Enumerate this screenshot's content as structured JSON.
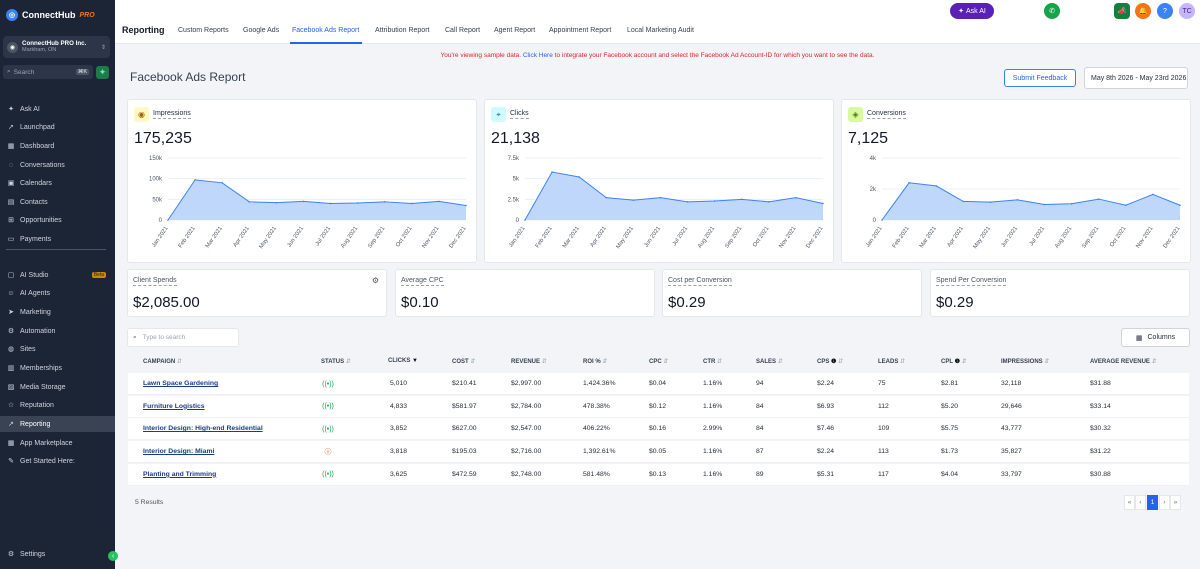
{
  "brand": {
    "name": "ConnectHub",
    "suffix": "PRO"
  },
  "account": {
    "name": "ConnectHub PRO Inc.",
    "location": "Markham, ON"
  },
  "sidebar": {
    "search_placeholder": "Search",
    "search_shortcut": "⌘K",
    "items": [
      {
        "label": "Ask AI",
        "icon": "sparkle-icon"
      },
      {
        "label": "Launchpad",
        "icon": "rocket-icon"
      },
      {
        "label": "Dashboard",
        "icon": "dashboard-icon"
      },
      {
        "label": "Conversations",
        "icon": "chat-icon"
      },
      {
        "label": "Calendars",
        "icon": "calendar-icon"
      },
      {
        "label": "Contacts",
        "icon": "contacts-icon"
      },
      {
        "label": "Opportunities",
        "icon": "funnel-icon"
      },
      {
        "label": "Payments",
        "icon": "payments-icon"
      },
      {
        "label": "AI Studio",
        "icon": "ai-studio-icon",
        "badge": "Beta"
      },
      {
        "label": "AI Agents",
        "icon": "robot-icon"
      },
      {
        "label": "Marketing",
        "icon": "send-icon"
      },
      {
        "label": "Automation",
        "icon": "automation-icon"
      },
      {
        "label": "Sites",
        "icon": "globe-icon"
      },
      {
        "label": "Memberships",
        "icon": "membership-icon"
      },
      {
        "label": "Media Storage",
        "icon": "image-icon"
      },
      {
        "label": "Reputation",
        "icon": "star-icon"
      },
      {
        "label": "Reporting",
        "icon": "trend-icon",
        "active": true
      },
      {
        "label": "App Marketplace",
        "icon": "grid-icon"
      },
      {
        "label": "Get Started Here:",
        "icon": "wrench-icon"
      }
    ],
    "settings_label": "Settings"
  },
  "header": {
    "title": "Reporting",
    "tabs": [
      "Custom Reports",
      "Google Ads",
      "Facebook Ads Report",
      "Attribution Report",
      "Call Report",
      "Agent Report",
      "Appointment Report",
      "Local Marketing Audit"
    ],
    "active_tab": "Facebook Ads Report",
    "ask_ai": "Ask AI",
    "avatar_initials": "TC"
  },
  "notice": {
    "prefix": "You're viewing sample data.",
    "link": "Click Here",
    "suffix": "to integrate your Facebook account and select the Facebook Ad Account-ID for which you want to see the data."
  },
  "page": {
    "title": "Facebook Ads Report",
    "feedback_button": "Submit Feedback",
    "date_range": "May 8th 2026 - May 23rd 2026"
  },
  "kpis": [
    {
      "label": "Impressions",
      "value": "175,235",
      "icon": "eye-icon",
      "color": "#fef9c3",
      "iconColor": "#a16207"
    },
    {
      "label": "Clicks",
      "value": "21,138",
      "icon": "cursor-click-icon",
      "color": "#cffafe",
      "iconColor": "#0e7490"
    },
    {
      "label": "Conversions",
      "value": "7,125",
      "icon": "diamond-icon",
      "color": "#d9f99d",
      "iconColor": "#4d7c0f"
    }
  ],
  "chart_data": [
    {
      "type": "area",
      "title": "Impressions",
      "x": [
        "Jan 2021",
        "Feb 2021",
        "Mar 2021",
        "Apr 2021",
        "May 2021",
        "Jun 2021",
        "Jul 2021",
        "Aug 2021",
        "Sep 2021",
        "Oct 2021",
        "Nov 2021",
        "Dec 2021"
      ],
      "values": [
        0,
        97000,
        90000,
        44000,
        42000,
        45000,
        40000,
        41000,
        44000,
        40000,
        45000,
        35000
      ],
      "ylim": [
        0,
        150000
      ],
      "yticks": [
        "0",
        "50k",
        "100k",
        "150k"
      ],
      "yticks_values": [
        0,
        50000,
        100000,
        150000
      ]
    },
    {
      "type": "area",
      "title": "Clicks",
      "x": [
        "Jan 2021",
        "Feb 2021",
        "Mar 2021",
        "Apr 2021",
        "May 2021",
        "Jun 2021",
        "Jul 2021",
        "Aug 2021",
        "Sep 2021",
        "Oct 2021",
        "Nov 2021",
        "Dec 2021"
      ],
      "values": [
        0,
        5800,
        5200,
        2700,
        2400,
        2700,
        2200,
        2300,
        2500,
        2200,
        2700,
        2000
      ],
      "ylim": [
        0,
        7500
      ],
      "yticks": [
        "0",
        "2.5k",
        "5k",
        "7.5k"
      ],
      "yticks_values": [
        0,
        2500,
        5000,
        7500
      ]
    },
    {
      "type": "area",
      "title": "Conversions",
      "x": [
        "Jan 2021",
        "Feb 2021",
        "Mar 2021",
        "Apr 2021",
        "May 2021",
        "Jun 2021",
        "Jul 2021",
        "Aug 2021",
        "Sep 2021",
        "Oct 2021",
        "Nov 2021",
        "Dec 2021"
      ],
      "values": [
        0,
        2400,
        2200,
        1200,
        1150,
        1300,
        1000,
        1050,
        1350,
        950,
        1650,
        950
      ],
      "ylim": [
        0,
        4000
      ],
      "yticks": [
        "0",
        "2k",
        "4k"
      ],
      "yticks_values": [
        0,
        2000,
        4000
      ]
    }
  ],
  "stats": [
    {
      "label": "Client Spends",
      "value": "$2,085.00",
      "gear": true
    },
    {
      "label": "Average CPC",
      "value": "$0.10"
    },
    {
      "label": "Cost per Conversion",
      "value": "$0.29"
    },
    {
      "label": "Spend Per Conversion",
      "value": "$0.29"
    }
  ],
  "table": {
    "search_placeholder": "Type to search",
    "columns_button": "Columns",
    "headers": [
      "CAMPAIGN",
      "STATUS",
      "CLICKS",
      "COST",
      "REVENUE",
      "ROI %",
      "CPC",
      "CTR",
      "SALES",
      "CPS",
      "LEADS",
      "CPL",
      "IMPRESSIONS",
      "AVERAGE REVENUE"
    ],
    "rows": [
      {
        "campaign": "Lawn Space Gardening",
        "status": "active",
        "clicks": "5,010",
        "cost": "$210.41",
        "revenue": "$2,997.00",
        "roi": "1,424.36%",
        "cpc": "$0.04",
        "ctr": "1.16%",
        "sales": "94",
        "cps": "$2.24",
        "leads": "75",
        "cpl": "$2.81",
        "impressions": "32,118",
        "avg_revenue": "$31.88"
      },
      {
        "campaign": "Furniture Logistics",
        "status": "active",
        "clicks": "4,833",
        "cost": "$581.97",
        "revenue": "$2,784.00",
        "roi": "478.38%",
        "cpc": "$0.12",
        "ctr": "1.16%",
        "sales": "84",
        "cps": "$6.93",
        "leads": "112",
        "cpl": "$5.20",
        "impressions": "29,646",
        "avg_revenue": "$33.14"
      },
      {
        "campaign": "Interior Design: High-end Residential",
        "status": "active",
        "clicks": "3,852",
        "cost": "$627.00",
        "revenue": "$2,547.00",
        "roi": "406.22%",
        "cpc": "$0.16",
        "ctr": "2.99%",
        "sales": "84",
        "cps": "$7.46",
        "leads": "109",
        "cpl": "$5.75",
        "impressions": "43,777",
        "avg_revenue": "$30.32"
      },
      {
        "campaign": "Interior Design: Miami",
        "status": "paused",
        "clicks": "3,818",
        "cost": "$195.03",
        "revenue": "$2,716.00",
        "roi": "1,392.61%",
        "cpc": "$0.05",
        "ctr": "1.16%",
        "sales": "87",
        "cps": "$2.24",
        "leads": "113",
        "cpl": "$1.73",
        "impressions": "35,827",
        "avg_revenue": "$31.22"
      },
      {
        "campaign": "Planting and Trimming",
        "status": "active",
        "clicks": "3,625",
        "cost": "$472.59",
        "revenue": "$2,748.00",
        "roi": "581.48%",
        "cpc": "$0.13",
        "ctr": "1.16%",
        "sales": "89",
        "cps": "$5.31",
        "leads": "117",
        "cpl": "$4.04",
        "impressions": "33,797",
        "avg_revenue": "$30.88"
      }
    ],
    "results": "5 Results",
    "current_page": "1"
  }
}
